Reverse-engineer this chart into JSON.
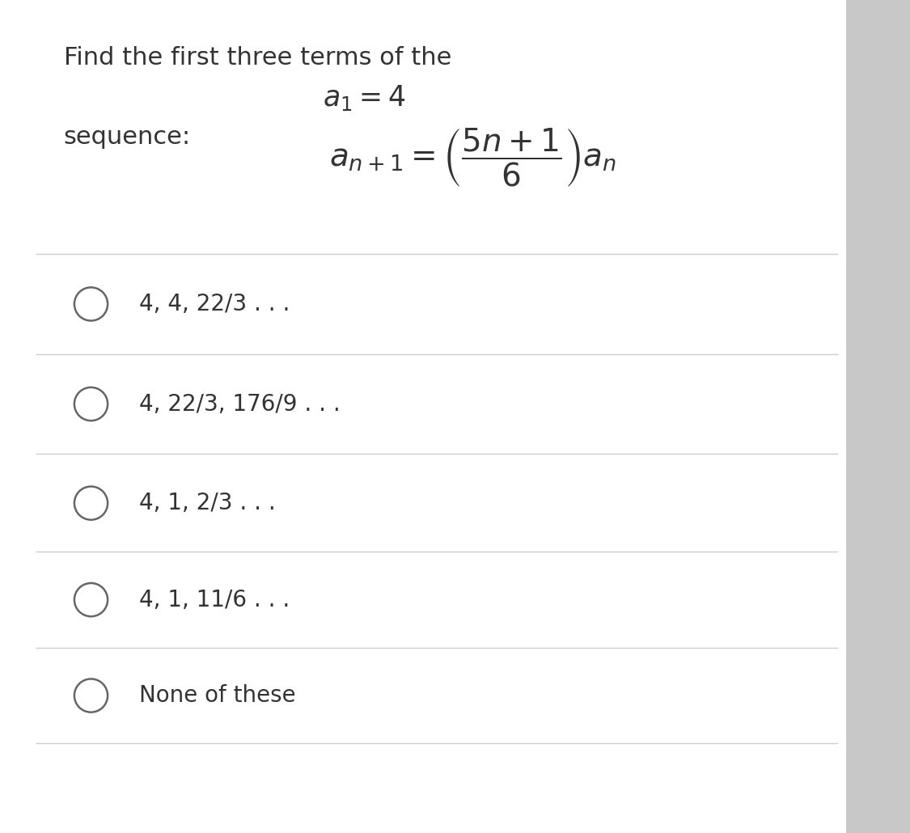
{
  "bg_color": "#f0f0f0",
  "card_color": "#ffffff",
  "title_line1": "Find the first three terms of the",
  "title_line2": "$a_1 = 4$",
  "title_line3": "sequence:",
  "options": [
    "4, 4, 22/3 . . .",
    "4, 22/3, 176/9 . . .",
    "4, 1, 2/3 . . .",
    "4, 1, 11/6 . . .",
    "None of these"
  ],
  "text_color": "#333333",
  "line_color": "#cccccc",
  "circle_color": "#666666",
  "title_fontsize": 22,
  "option_fontsize": 20,
  "math_fontsize": 24
}
